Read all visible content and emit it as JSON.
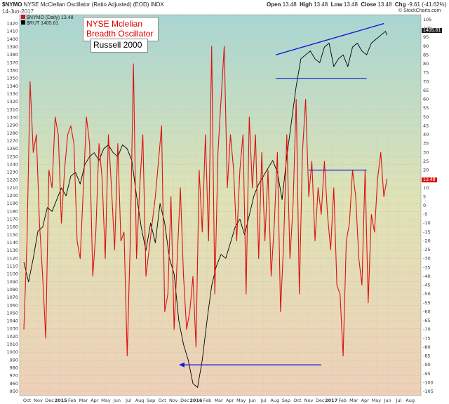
{
  "header": {
    "symbol": "$NYMO",
    "description": "NYSE McClellan Oscillator (Ratio Adjusted) (EOD) INDX",
    "date": "14-Jun-2017",
    "open_label": "Open",
    "open_value": "13.48",
    "high_label": "High",
    "high_value": "13.48",
    "low_label": "Low",
    "low_value": "13.48",
    "close_label": "Close",
    "close_value": "13.48",
    "chg_label": "Chg",
    "chg_value": "-9.61 (-41.62%)",
    "watermark": "© StockCharts.com"
  },
  "legend": {
    "nymo": "$NYMO (Daily) 13.48",
    "rut": "$RUT 1405.61"
  },
  "annotations": {
    "oscillator_line1": "NYSE Mclelian",
    "oscillator_line2": "Breadth Oscillator",
    "russell": "Russell 2000"
  },
  "colors": {
    "nymo": "#dd1111",
    "rut": "#000000",
    "trendline": "#1a1adb",
    "label_red": "#dd0000"
  },
  "chart_data": {
    "type": "line",
    "x_axis_labels": [
      "Oct",
      "Nov",
      "Dec",
      "2015",
      "Feb",
      "Mar",
      "Apr",
      "May",
      "Jun",
      "Jul",
      "Aug",
      "Sep",
      "Oct",
      "Nov",
      "Dec",
      "2016",
      "Feb",
      "Mar",
      "Apr",
      "May",
      "Jun",
      "Jul",
      "Aug",
      "Sep",
      "Oct",
      "Nov",
      "Dec",
      "2017",
      "Feb",
      "Mar",
      "Apr",
      "May",
      "Jun",
      "Jul",
      "Aug"
    ],
    "left_axis": {
      "label": "$RUT",
      "min": 950,
      "max": 1425,
      "step": 10
    },
    "right_axis": {
      "label": "$NYMO",
      "min": -105,
      "max": 105,
      "step": 5
    },
    "last_values": {
      "rut": "1405.61",
      "nymo": "13.48"
    },
    "series": [
      {
        "name": "$RUT",
        "axis": "left",
        "x": [
          0,
          3,
          6,
          9,
          12,
          15,
          18,
          21,
          24,
          27,
          30,
          33,
          36,
          39,
          42,
          45,
          48,
          51,
          54,
          57,
          60,
          63,
          66,
          69,
          72,
          75,
          78,
          81,
          84,
          87,
          90,
          93,
          96,
          99,
          102,
          105,
          108,
          111,
          114,
          117,
          120,
          123,
          126,
          129,
          132,
          135,
          138,
          141,
          144,
          147,
          150,
          153,
          156,
          159,
          162,
          165,
          168,
          171,
          174,
          177,
          180,
          183,
          186,
          189,
          192,
          195,
          198,
          201,
          204,
          207,
          210,
          213,
          216,
          219,
          222,
          225,
          228,
          231,
          232
        ],
        "values": [
          1115,
          1090,
          1120,
          1155,
          1160,
          1185,
          1180,
          1195,
          1210,
          1200,
          1225,
          1230,
          1215,
          1240,
          1250,
          1255,
          1245,
          1260,
          1265,
          1255,
          1250,
          1265,
          1260,
          1245,
          1200,
          1160,
          1130,
          1165,
          1140,
          1190,
          1165,
          1120,
          1100,
          1040,
          1010,
          990,
          960,
          955,
          990,
          1040,
          1085,
          1110,
          1125,
          1120,
          1140,
          1160,
          1170,
          1150,
          1175,
          1200,
          1215,
          1225,
          1235,
          1245,
          1230,
          1195,
          1250,
          1295,
          1340,
          1375,
          1380,
          1385,
          1375,
          1370,
          1390,
          1395,
          1365,
          1375,
          1380,
          1365,
          1390,
          1395,
          1385,
          1380,
          1395,
          1400,
          1405,
          1410,
          1405
        ]
      },
      {
        "name": "$NYMO",
        "axis": "right",
        "x": [
          0,
          2,
          4,
          6,
          8,
          10,
          12,
          14,
          16,
          18,
          20,
          22,
          24,
          26,
          28,
          30,
          32,
          34,
          36,
          38,
          40,
          42,
          44,
          46,
          48,
          50,
          52,
          54,
          56,
          58,
          60,
          62,
          64,
          66,
          68,
          70,
          72,
          74,
          76,
          78,
          80,
          82,
          84,
          86,
          88,
          90,
          92,
          94,
          96,
          98,
          100,
          102,
          104,
          106,
          108,
          110,
          112,
          114,
          116,
          118,
          120,
          122,
          124,
          126,
          128,
          130,
          132,
          134,
          136,
          138,
          140,
          142,
          144,
          146,
          148,
          150,
          152,
          154,
          156,
          158,
          160,
          162,
          164,
          166,
          168,
          170,
          172,
          174,
          176,
          178,
          180,
          182,
          184,
          186,
          188,
          190,
          192,
          194,
          196,
          198,
          200,
          202,
          204,
          206,
          208,
          210,
          212,
          214,
          216,
          218,
          220,
          222,
          224,
          226,
          228,
          230,
          232
        ],
        "values": [
          -70,
          -20,
          70,
          30,
          40,
          -10,
          -40,
          -75,
          20,
          10,
          50,
          40,
          -10,
          20,
          40,
          45,
          35,
          -20,
          -30,
          10,
          50,
          35,
          -40,
          -15,
          35,
          15,
          -30,
          40,
          10,
          -25,
          35,
          -20,
          -15,
          -85,
          -20,
          80,
          -30,
          10,
          40,
          -40,
          -25,
          -10,
          5,
          25,
          45,
          -60,
          -50,
          5,
          -70,
          -30,
          10,
          -40,
          -70,
          -60,
          -40,
          -80,
          20,
          -15,
          40,
          -20,
          90,
          -50,
          30,
          60,
          90,
          10,
          40,
          20,
          -20,
          20,
          40,
          -50,
          50,
          10,
          40,
          -30,
          30,
          -20,
          20,
          -40,
          -10,
          30,
          -60,
          -20,
          40,
          -30,
          0,
          60,
          -50,
          30,
          60,
          5,
          25,
          -20,
          10,
          -5,
          25,
          -5,
          -25,
          10,
          -45,
          -50,
          -85,
          -20,
          -10,
          20,
          5,
          -30,
          -45,
          20,
          -55,
          -5,
          -15,
          15,
          30,
          5,
          15
        ]
      }
    ],
    "annotations": [
      {
        "type": "trendline",
        "axis": "left",
        "x1": 161,
        "y1": 1380,
        "x2": 230,
        "y2": 1420,
        "note": "rising top trendline on Russell 2000"
      },
      {
        "type": "hline",
        "axis": "left",
        "x1": 161,
        "x2": 219,
        "y": 1350,
        "note": "horizontal support on Russell 2000"
      },
      {
        "type": "hline",
        "axis": "right",
        "x1": 182,
        "x2": 219,
        "y": 20,
        "note": "horizontal line on oscillator"
      },
      {
        "type": "arrow",
        "axis": "right",
        "x1": 190,
        "x2": 99,
        "y": -90,
        "note": "arrow comparing oscillator lows"
      }
    ]
  }
}
